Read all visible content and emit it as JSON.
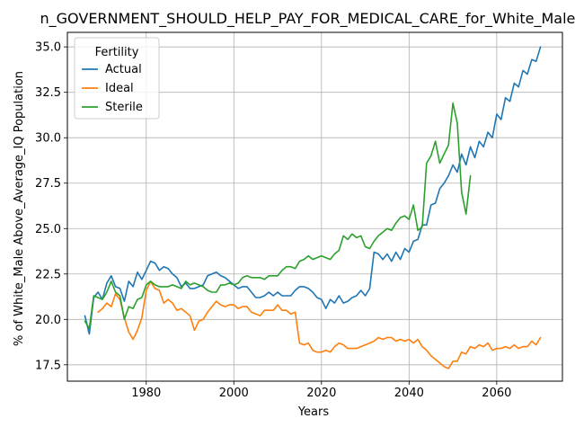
{
  "chart_data": {
    "type": "line",
    "title": "n_GOVERNMENT_SHOULD_HELP_PAY_FOR_MEDICAL_CARE_for_White_Male_Ab",
    "xlabel": "Years",
    "ylabel": "% of White_Male Above_Average_IQ Population",
    "xlim": [
      1962,
      2075
    ],
    "ylim": [
      16.6,
      35.8
    ],
    "xticks": [
      1980,
      2000,
      2020,
      2040,
      2060
    ],
    "xtick_labels": [
      "1980",
      "2000",
      "2020",
      "2040",
      "2060"
    ],
    "yticks": [
      17.5,
      20.0,
      22.5,
      25.0,
      27.5,
      30.0,
      32.5,
      35.0
    ],
    "ytick_labels": [
      "17.5",
      "20.0",
      "22.5",
      "25.0",
      "27.5",
      "30.0",
      "32.5",
      "35.0"
    ],
    "grid": true,
    "legend": {
      "title": "Fertility",
      "position": "top-left"
    },
    "series": [
      {
        "name": "Actual",
        "color": "#1f77b4",
        "points": [
          [
            1966,
            20.2
          ],
          [
            1967,
            19.2
          ],
          [
            1968,
            21.2
          ],
          [
            1969,
            21.5
          ],
          [
            1970,
            21.1
          ],
          [
            1971,
            22.0
          ],
          [
            1972,
            22.4
          ],
          [
            1973,
            21.8
          ],
          [
            1974,
            21.7
          ],
          [
            1975,
            21.0
          ],
          [
            1976,
            22.1
          ],
          [
            1977,
            21.8
          ],
          [
            1978,
            22.6
          ],
          [
            1979,
            22.2
          ],
          [
            1980,
            22.7
          ],
          [
            1981,
            23.2
          ],
          [
            1982,
            23.1
          ],
          [
            1983,
            22.7
          ],
          [
            1984,
            22.9
          ],
          [
            1985,
            22.8
          ],
          [
            1986,
            22.5
          ],
          [
            1987,
            22.3
          ],
          [
            1988,
            21.8
          ],
          [
            1989,
            22.0
          ],
          [
            1990,
            21.7
          ],
          [
            1991,
            21.7
          ],
          [
            1992,
            21.8
          ],
          [
            1993,
            21.9
          ],
          [
            1994,
            22.4
          ],
          [
            1995,
            22.5
          ],
          [
            1996,
            22.6
          ],
          [
            1997,
            22.4
          ],
          [
            1998,
            22.3
          ],
          [
            1999,
            22.1
          ],
          [
            2000,
            21.9
          ],
          [
            2001,
            21.7
          ],
          [
            2002,
            21.8
          ],
          [
            2003,
            21.8
          ],
          [
            2004,
            21.5
          ],
          [
            2005,
            21.2
          ],
          [
            2006,
            21.2
          ],
          [
            2007,
            21.3
          ],
          [
            2008,
            21.5
          ],
          [
            2009,
            21.3
          ],
          [
            2010,
            21.5
          ],
          [
            2011,
            21.3
          ],
          [
            2012,
            21.3
          ],
          [
            2013,
            21.3
          ],
          [
            2014,
            21.6
          ],
          [
            2015,
            21.8
          ],
          [
            2016,
            21.8
          ],
          [
            2017,
            21.7
          ],
          [
            2018,
            21.5
          ],
          [
            2019,
            21.2
          ],
          [
            2020,
            21.1
          ],
          [
            2021,
            20.6
          ],
          [
            2022,
            21.1
          ],
          [
            2023,
            20.9
          ],
          [
            2024,
            21.3
          ],
          [
            2025,
            20.9
          ],
          [
            2026,
            21.0
          ],
          [
            2027,
            21.2
          ],
          [
            2028,
            21.3
          ],
          [
            2029,
            21.6
          ],
          [
            2030,
            21.3
          ],
          [
            2031,
            21.7
          ],
          [
            2032,
            23.7
          ],
          [
            2033,
            23.6
          ],
          [
            2034,
            23.3
          ],
          [
            2035,
            23.6
          ],
          [
            2036,
            23.2
          ],
          [
            2037,
            23.7
          ],
          [
            2038,
            23.3
          ],
          [
            2039,
            23.9
          ],
          [
            2040,
            23.7
          ],
          [
            2041,
            24.3
          ],
          [
            2042,
            24.4
          ],
          [
            2043,
            25.2
          ],
          [
            2044,
            25.2
          ],
          [
            2045,
            26.3
          ],
          [
            2046,
            26.4
          ],
          [
            2047,
            27.2
          ],
          [
            2048,
            27.5
          ],
          [
            2049,
            27.9
          ],
          [
            2050,
            28.5
          ],
          [
            2051,
            28.1
          ],
          [
            2052,
            29.1
          ],
          [
            2053,
            28.5
          ],
          [
            2054,
            29.5
          ],
          [
            2055,
            28.9
          ],
          [
            2056,
            29.8
          ],
          [
            2057,
            29.5
          ],
          [
            2058,
            30.3
          ],
          [
            2059,
            30.0
          ],
          [
            2060,
            31.3
          ],
          [
            2061,
            31.0
          ],
          [
            2062,
            32.2
          ],
          [
            2063,
            32.0
          ],
          [
            2064,
            33.0
          ],
          [
            2065,
            32.8
          ],
          [
            2066,
            33.7
          ],
          [
            2067,
            33.5
          ],
          [
            2068,
            34.3
          ],
          [
            2069,
            34.2
          ],
          [
            2070,
            35.0
          ]
        ]
      },
      {
        "name": "Ideal",
        "color": "#ff7f0e",
        "points": [
          [
            1969,
            20.4
          ],
          [
            1970,
            20.6
          ],
          [
            1971,
            20.9
          ],
          [
            1972,
            20.7
          ],
          [
            1973,
            21.4
          ],
          [
            1974,
            21.1
          ],
          [
            1975,
            20.1
          ],
          [
            1976,
            19.3
          ],
          [
            1977,
            18.9
          ],
          [
            1978,
            19.4
          ],
          [
            1979,
            20.1
          ],
          [
            1980,
            21.6
          ],
          [
            1981,
            22.1
          ],
          [
            1982,
            21.7
          ],
          [
            1983,
            21.6
          ],
          [
            1984,
            20.9
          ],
          [
            1985,
            21.1
          ],
          [
            1986,
            20.9
          ],
          [
            1987,
            20.5
          ],
          [
            1988,
            20.6
          ],
          [
            1989,
            20.4
          ],
          [
            1990,
            20.2
          ],
          [
            1991,
            19.4
          ],
          [
            1992,
            19.9
          ],
          [
            1993,
            20.0
          ],
          [
            1994,
            20.4
          ],
          [
            1995,
            20.7
          ],
          [
            1996,
            21.0
          ],
          [
            1997,
            20.8
          ],
          [
            1998,
            20.7
          ],
          [
            1999,
            20.8
          ],
          [
            2000,
            20.8
          ],
          [
            2001,
            20.6
          ],
          [
            2002,
            20.7
          ],
          [
            2003,
            20.7
          ],
          [
            2004,
            20.4
          ],
          [
            2005,
            20.3
          ],
          [
            2006,
            20.2
          ],
          [
            2007,
            20.5
          ],
          [
            2008,
            20.5
          ],
          [
            2009,
            20.5
          ],
          [
            2010,
            20.8
          ],
          [
            2011,
            20.5
          ],
          [
            2012,
            20.5
          ],
          [
            2013,
            20.3
          ],
          [
            2014,
            20.4
          ],
          [
            2015,
            18.7
          ],
          [
            2016,
            18.6
          ],
          [
            2017,
            18.7
          ],
          [
            2018,
            18.3
          ],
          [
            2019,
            18.2
          ],
          [
            2020,
            18.2
          ],
          [
            2021,
            18.3
          ],
          [
            2022,
            18.2
          ],
          [
            2023,
            18.5
          ],
          [
            2024,
            18.7
          ],
          [
            2025,
            18.6
          ],
          [
            2026,
            18.4
          ],
          [
            2027,
            18.4
          ],
          [
            2028,
            18.4
          ],
          [
            2029,
            18.5
          ],
          [
            2030,
            18.6
          ],
          [
            2031,
            18.7
          ],
          [
            2032,
            18.8
          ],
          [
            2033,
            19.0
          ],
          [
            2034,
            18.9
          ],
          [
            2035,
            19.0
          ],
          [
            2036,
            19.0
          ],
          [
            2037,
            18.8
          ],
          [
            2038,
            18.9
          ],
          [
            2039,
            18.8
          ],
          [
            2040,
            18.9
          ],
          [
            2041,
            18.7
          ],
          [
            2042,
            18.9
          ],
          [
            2043,
            18.5
          ],
          [
            2044,
            18.3
          ],
          [
            2045,
            18.0
          ],
          [
            2046,
            17.8
          ],
          [
            2047,
            17.6
          ],
          [
            2048,
            17.4
          ],
          [
            2049,
            17.3
          ],
          [
            2050,
            17.7
          ],
          [
            2051,
            17.7
          ],
          [
            2052,
            18.2
          ],
          [
            2053,
            18.1
          ],
          [
            2054,
            18.5
          ],
          [
            2055,
            18.4
          ],
          [
            2056,
            18.6
          ],
          [
            2057,
            18.5
          ],
          [
            2058,
            18.7
          ],
          [
            2059,
            18.3
          ],
          [
            2060,
            18.4
          ],
          [
            2061,
            18.4
          ],
          [
            2062,
            18.5
          ],
          [
            2063,
            18.4
          ],
          [
            2064,
            18.6
          ],
          [
            2065,
            18.4
          ],
          [
            2066,
            18.5
          ],
          [
            2067,
            18.5
          ],
          [
            2068,
            18.8
          ],
          [
            2069,
            18.6
          ],
          [
            2070,
            19.0
          ]
        ]
      },
      {
        "name": "Sterile",
        "color": "#2ca02c",
        "points": [
          [
            1966,
            19.9
          ],
          [
            1967,
            19.5
          ],
          [
            1968,
            21.3
          ],
          [
            1969,
            21.2
          ],
          [
            1970,
            21.1
          ],
          [
            1971,
            21.5
          ],
          [
            1972,
            22.1
          ],
          [
            1973,
            21.5
          ],
          [
            1974,
            21.3
          ],
          [
            1975,
            20.0
          ],
          [
            1976,
            20.7
          ],
          [
            1977,
            20.6
          ],
          [
            1978,
            21.1
          ],
          [
            1979,
            21.2
          ],
          [
            1980,
            21.9
          ],
          [
            1981,
            22.1
          ],
          [
            1982,
            21.9
          ],
          [
            1983,
            21.8
          ],
          [
            1984,
            21.8
          ],
          [
            1985,
            21.8
          ],
          [
            1986,
            21.9
          ],
          [
            1987,
            21.8
          ],
          [
            1988,
            21.7
          ],
          [
            1989,
            22.1
          ],
          [
            1990,
            21.9
          ],
          [
            1991,
            22.0
          ],
          [
            1992,
            21.9
          ],
          [
            1993,
            21.8
          ],
          [
            1994,
            21.6
          ],
          [
            1995,
            21.5
          ],
          [
            1996,
            21.5
          ],
          [
            1997,
            21.9
          ],
          [
            1998,
            21.9
          ],
          [
            1999,
            22.0
          ],
          [
            2000,
            21.9
          ],
          [
            2001,
            22.0
          ],
          [
            2002,
            22.3
          ],
          [
            2003,
            22.4
          ],
          [
            2004,
            22.3
          ],
          [
            2005,
            22.3
          ],
          [
            2006,
            22.3
          ],
          [
            2007,
            22.2
          ],
          [
            2008,
            22.4
          ],
          [
            2009,
            22.4
          ],
          [
            2010,
            22.4
          ],
          [
            2011,
            22.7
          ],
          [
            2012,
            22.9
          ],
          [
            2013,
            22.9
          ],
          [
            2014,
            22.8
          ],
          [
            2015,
            23.2
          ],
          [
            2016,
            23.3
          ],
          [
            2017,
            23.5
          ],
          [
            2018,
            23.3
          ],
          [
            2019,
            23.4
          ],
          [
            2020,
            23.5
          ],
          [
            2021,
            23.4
          ],
          [
            2022,
            23.3
          ],
          [
            2023,
            23.6
          ],
          [
            2024,
            23.8
          ],
          [
            2025,
            24.6
          ],
          [
            2026,
            24.4
          ],
          [
            2027,
            24.7
          ],
          [
            2028,
            24.5
          ],
          [
            2029,
            24.6
          ],
          [
            2030,
            24.0
          ],
          [
            2031,
            23.9
          ],
          [
            2032,
            24.3
          ],
          [
            2033,
            24.6
          ],
          [
            2034,
            24.8
          ],
          [
            2035,
            25.0
          ],
          [
            2036,
            24.9
          ],
          [
            2037,
            25.3
          ],
          [
            2038,
            25.6
          ],
          [
            2039,
            25.7
          ],
          [
            2040,
            25.5
          ],
          [
            2041,
            26.3
          ],
          [
            2042,
            24.9
          ],
          [
            2043,
            25.1
          ],
          [
            2044,
            28.6
          ],
          [
            2045,
            29.0
          ],
          [
            2046,
            29.8
          ],
          [
            2047,
            28.6
          ],
          [
            2048,
            29.1
          ],
          [
            2049,
            29.6
          ],
          [
            2050,
            31.9
          ],
          [
            2051,
            30.8
          ],
          [
            2052,
            27.0
          ],
          [
            2053,
            25.8
          ],
          [
            2054,
            27.9
          ]
        ]
      }
    ]
  }
}
